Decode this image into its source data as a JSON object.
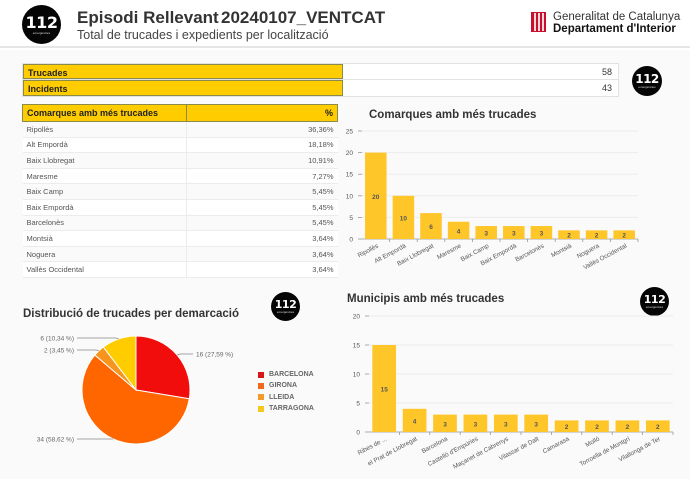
{
  "header": {
    "title": "Episodi Rellevant",
    "code": "20240107_VENTCAT",
    "subtitle": "Total de trucades i expedients per localització",
    "logo_text": "112",
    "logo_sub": "emergències",
    "org_line1": "Generalitat de Catalunya",
    "org_line2": "Departament d'Interior"
  },
  "kpis": [
    {
      "label": "Trucades",
      "value": "58"
    },
    {
      "label": "Incidents",
      "value": "43"
    }
  ],
  "comarques_table": {
    "headers": [
      "Comarques amb més trucades",
      "%"
    ],
    "rows": [
      {
        "name": "Ripollès",
        "pct": "36,36%"
      },
      {
        "name": "Alt Empordà",
        "pct": "18,18%"
      },
      {
        "name": "Baix Llobregat",
        "pct": "10,91%"
      },
      {
        "name": "Maresme",
        "pct": "7,27%"
      },
      {
        "name": "Baix Camp",
        "pct": "5,45%"
      },
      {
        "name": "Baix Empordà",
        "pct": "5,45%"
      },
      {
        "name": "Barcelonès",
        "pct": "5,45%"
      },
      {
        "name": "Montsià",
        "pct": "3,64%"
      },
      {
        "name": "Noguera",
        "pct": "3,64%"
      },
      {
        "name": "Vallès Occidental",
        "pct": "3,64%"
      }
    ]
  },
  "colors": {
    "accent_yellow": "#ffcc00",
    "bar": "#ffc629",
    "barcelona": "#f20d0d",
    "girona": "#ff6600",
    "lleida": "#f7941d",
    "tarragona": "#ffcc00"
  },
  "chart_data": [
    {
      "type": "bar",
      "title": "Comarques amb més trucades",
      "categories": [
        "Ripollès",
        "Alt Empordà",
        "Baix Llobregat",
        "Maresme",
        "Baix Camp",
        "Baix Empordà",
        "Barcelonès",
        "Montsià",
        "Noguera",
        "Vallès Occidental"
      ],
      "values": [
        20,
        10,
        6,
        4,
        3,
        3,
        3,
        2,
        2,
        2
      ],
      "yticks": [
        0,
        5,
        10,
        15,
        20,
        25
      ],
      "ylim": [
        0,
        25
      ],
      "xlabel": "",
      "ylabel": "",
      "grid": true,
      "data_labels": true
    },
    {
      "type": "pie",
      "title": "Distribució de trucades per demarcació",
      "categories": [
        "BARCELONA",
        "GIRONA",
        "LLEIDA",
        "TARRAGONA"
      ],
      "values": [
        16,
        34,
        2,
        6
      ],
      "percentages": [
        27.59,
        58.62,
        3.45,
        10.34
      ],
      "labels": [
        "16 (27,59 %)",
        "34 (58,62 %)",
        "2 (3,45 %)",
        "6 (10,34 %)"
      ],
      "legend_position": "right"
    },
    {
      "type": "bar",
      "title": "Municipis amb més trucades",
      "categories": [
        "Ribes de ...",
        "el Prat de Llobregat",
        "Barcelona",
        "Castelló d'Empúries",
        "Maçanet de Cabrenys",
        "Vilassar de Dalt",
        "Camarasa",
        "Molló",
        "Torroella de Montgrí",
        "Vilallonga de Ter"
      ],
      "values": [
        15,
        4,
        3,
        3,
        3,
        3,
        2,
        2,
        2,
        2
      ],
      "yticks": [
        0,
        5,
        10,
        15,
        20
      ],
      "ylim": [
        0,
        20
      ],
      "xlabel": "",
      "ylabel": "",
      "grid": true,
      "data_labels": true
    }
  ]
}
